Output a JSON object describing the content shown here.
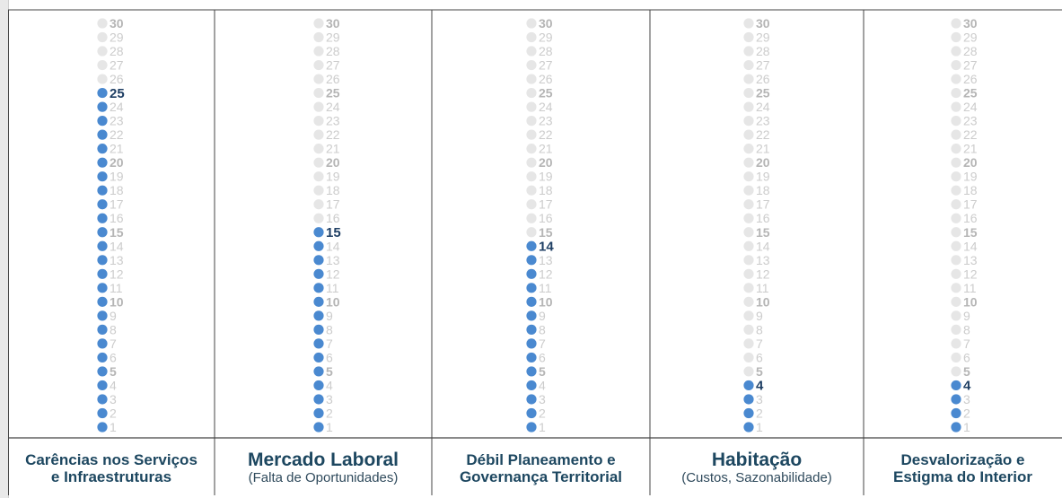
{
  "chart_data": {
    "type": "dot-column",
    "scale_max": 30,
    "categories": [
      "Carências nos Serviços e Infraestruturas",
      "Mercado Laboral",
      "Débil Planeamento e Governança Territorial",
      "Habitação",
      "Desvalorização e Estigma do Interior"
    ],
    "values": [
      25,
      15,
      14,
      4,
      4
    ],
    "colors": {
      "filled": "#4a89d0",
      "empty": "#e6e6e6",
      "value_label": "#1f3f64",
      "tick_label": "#cccccc",
      "tick_label_bold": "#b5b5b5"
    }
  },
  "columns": [
    {
      "title_lines": [
        "Carências nos Serviços",
        "e Infraestruturas"
      ],
      "subtitle": "",
      "large": false
    },
    {
      "title_lines": [
        "Mercado Laboral"
      ],
      "subtitle": "(Falta de Oportunidades)",
      "large": true
    },
    {
      "title_lines": [
        "Débil Planeamento e",
        "Governança Territorial"
      ],
      "subtitle": "",
      "large": false
    },
    {
      "title_lines": [
        "Habitação"
      ],
      "subtitle": "(Custos, Sazonabilidade)",
      "large": true
    },
    {
      "title_lines": [
        "Desvalorização e",
        "Estigma do Interior"
      ],
      "subtitle": "",
      "large": false
    }
  ]
}
